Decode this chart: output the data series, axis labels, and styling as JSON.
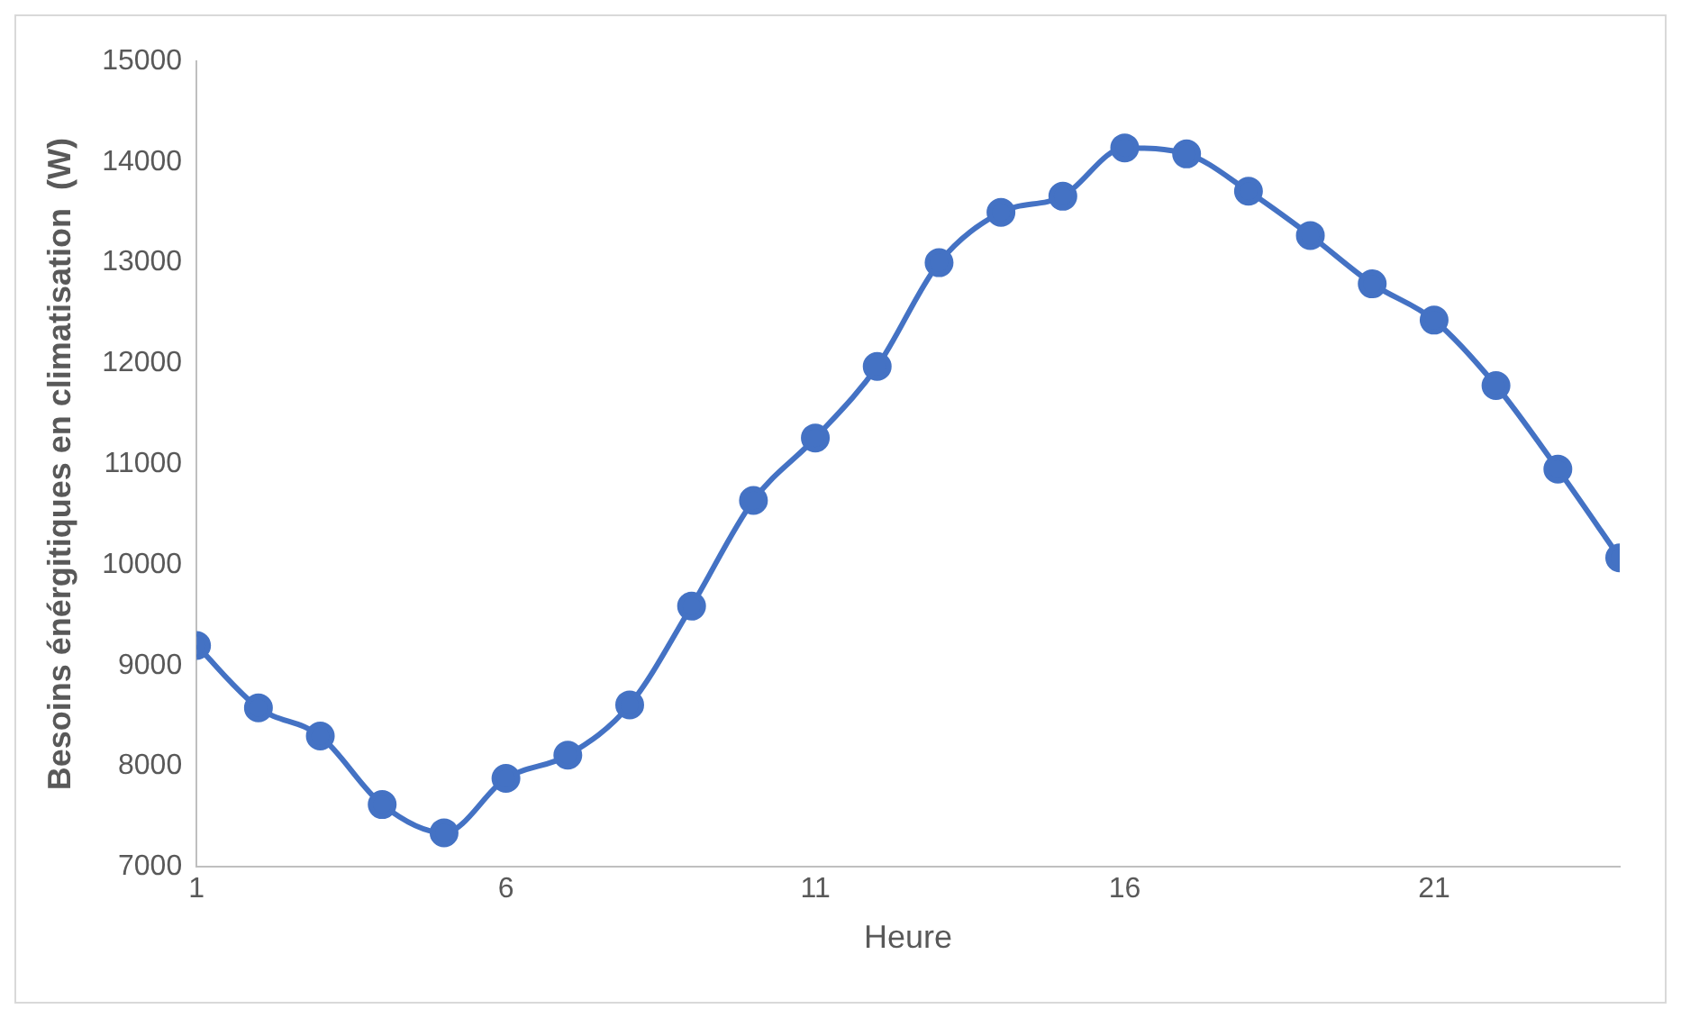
{
  "chart_data": {
    "type": "line",
    "xlabel": "Heure",
    "ylabel": "Besoins énérgitiques en climatisation  (W)",
    "x": [
      1,
      2,
      3,
      4,
      5,
      6,
      7,
      8,
      9,
      10,
      11,
      12,
      13,
      14,
      15,
      16,
      17,
      18,
      19,
      20,
      21,
      22,
      23,
      24
    ],
    "series": [
      {
        "color": "#4472c4",
        "values": [
          9200,
          8580,
          8300,
          7620,
          7340,
          7880,
          8110,
          8610,
          9590,
          10640,
          11260,
          11970,
          13000,
          13500,
          13660,
          14140,
          14080,
          13710,
          13270,
          12790,
          12430,
          11780,
          10950,
          10070
        ]
      }
    ],
    "xlim": [
      1,
      24
    ],
    "xticks": [
      1,
      6,
      11,
      16,
      21
    ],
    "ylim": [
      7000,
      15000
    ],
    "yticks": [
      7000,
      8000,
      9000,
      10000,
      11000,
      12000,
      13000,
      14000,
      15000
    ],
    "grid": false,
    "legend": false,
    "marker": "circle",
    "line_style": "solid"
  }
}
